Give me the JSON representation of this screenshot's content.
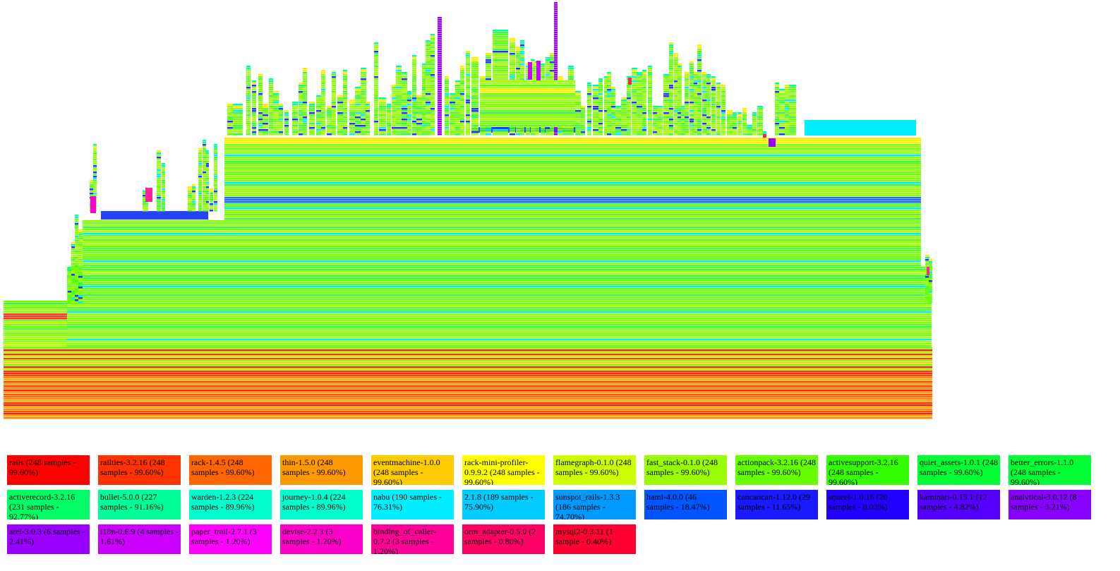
{
  "chart_data": {
    "type": "flamegraph",
    "legend": [
      {
        "label": "rails (248 samples - 99.60%)",
        "color": "#ff0000"
      },
      {
        "label": "railties-3.2.16 (248 samples - 99.60%)",
        "color": "#ff3300"
      },
      {
        "label": "rack-1.4.5 (248 samples - 99.60%)",
        "color": "#ff6600"
      },
      {
        "label": "thin-1.5.0 (248 samples - 99.60%)",
        "color": "#ff9900"
      },
      {
        "label": "eventmachine-1.0.0 (248 samples - 99.60%)",
        "color": "#ffcc00"
      },
      {
        "label": "rack-mini-profiler-0.9.9.2 (248 samples - 99.60%)",
        "color": "#ffff00"
      },
      {
        "label": "flamegraph-0.1.0 (248 samples - 99.60%)",
        "color": "#ccff00"
      },
      {
        "label": "fast_stack-0.1.0 (248 samples - 99.60%)",
        "color": "#99ff00"
      },
      {
        "label": "actionpack-3.2.16 (248 samples - 99.60%)",
        "color": "#66ff00"
      },
      {
        "label": "activesupport-3.2.16 (248 samples - 99.60%)",
        "color": "#33ff00"
      },
      {
        "label": "quiet_assets-1.0.1 (248 samples - 99.60%)",
        "color": "#00ff33"
      },
      {
        "label": "better_errors-1.1.0 (248 samples - 99.60%)",
        "color": "#00ff33"
      },
      {
        "label": "activerecord-3.2.16 (231 samples - 92.77%)",
        "color": "#00ff66"
      },
      {
        "label": "bullet-5.0.0 (227 samples - 91.16%)",
        "color": "#00ff99"
      },
      {
        "label": "warden-1.2.3 (224 samples - 89.96%)",
        "color": "#00ffcc"
      },
      {
        "label": "journey-1.0.4 (224 samples - 89.96%)",
        "color": "#00ffcc"
      },
      {
        "label": "nabu (190 samples - 76.31%)",
        "color": "#00eeff"
      },
      {
        "label": "2.1.8 (189 samples - 75.90%)",
        "color": "#00ccff"
      },
      {
        "label": "sunspot_rails-1.3.3 (186 samples - 74.70%)",
        "color": "#0099ff"
      },
      {
        "label": "haml-4.0.0 (46 samples - 18.47%)",
        "color": "#0055ff"
      },
      {
        "label": "cancancan-1.12.0 (29 samples - 11.65%)",
        "color": "#1a1aff"
      },
      {
        "label": "squeel-1.0.16 (20 samples - 8.03%)",
        "color": "#2200ff"
      },
      {
        "label": "kaminari-0.15.1 (12 samples - 4.82%)",
        "color": "#5500ff"
      },
      {
        "label": "analytical-3.0.12 (8 samples - 3.21%)",
        "color": "#8800ff"
      },
      {
        "label": "arel-3.0.3 (6 samples - 2.41%)",
        "color": "#9900ff"
      },
      {
        "label": "i18n-0.6.9 (4 samples - 1.61%)",
        "color": "#cc00ff"
      },
      {
        "label": "paper_trail-2.7.1 (3 samples - 1.20%)",
        "color": "#ff00ff"
      },
      {
        "label": "devise-2.2.3 (3 samples - 1.20%)",
        "color": "#ff00cc"
      },
      {
        "label": "binding_of_caller-0.7.2 (3 samples - 1.20%)",
        "color": "#ff0099"
      },
      {
        "label": "orm_adapter-0.5.0 (2 samples - 0.80%)",
        "color": "#ff0066"
      },
      {
        "label": "mysql2-0.3.11 (1 sample - 0.40%)",
        "color": "#ff0033"
      }
    ]
  }
}
